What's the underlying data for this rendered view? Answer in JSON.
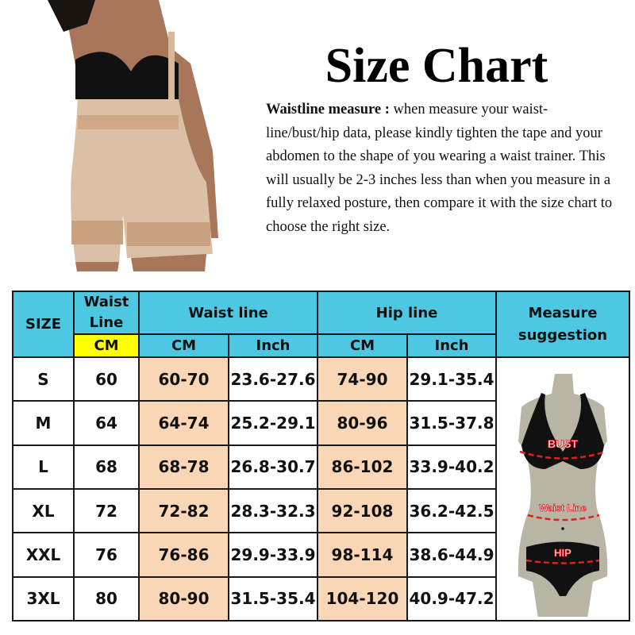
{
  "title": "Size Chart",
  "description": {
    "lead": "Waistline measure :",
    "body": " when measure your waist-line/bust/hip data, please kindly tighten the tape and your abdomen to the shape of you wearing a waist trainer. This will usually be 2-3 inches less than when you measure in a fully relaxed posture, then compare it with the size chart to choose the right size."
  },
  "table": {
    "headers": {
      "size": "SIZE",
      "waist_line_1": "Waist",
      "waist_line_2": "Line",
      "waist_line_group": "Waist line",
      "hip_line_group": "Hip line",
      "measure": "Measure suggestion",
      "cm": "CM",
      "inch": "Inch"
    },
    "rows": [
      {
        "size": "S",
        "waist": "60",
        "waist_cm": "60-70",
        "waist_inch": "23.6-27.6",
        "hip_cm": "74-90",
        "hip_inch": "29.1-35.4"
      },
      {
        "size": "M",
        "waist": "64",
        "waist_cm": "64-74",
        "waist_inch": "25.2-29.1",
        "hip_cm": "80-96",
        "hip_inch": "31.5-37.8"
      },
      {
        "size": "L",
        "waist": "68",
        "waist_cm": "68-78",
        "waist_inch": "26.8-30.7",
        "hip_cm": "86-102",
        "hip_inch": "33.9-40.2"
      },
      {
        "size": "XL",
        "waist": "72",
        "waist_cm": "72-82",
        "waist_inch": "28.3-32.3",
        "hip_cm": "92-108",
        "hip_inch": "36.2-42.5"
      },
      {
        "size": "XXL",
        "waist": "76",
        "waist_cm": "76-86",
        "waist_inch": "29.9-33.9",
        "hip_cm": "98-114",
        "hip_inch": "38.6-44.9"
      },
      {
        "size": "3XL",
        "waist": "80",
        "waist_cm": "80-90",
        "waist_inch": "31.5-35.4",
        "hip_cm": "104-120",
        "hip_inch": "40.9-47.2"
      }
    ]
  },
  "figure": {
    "bust": "BUST",
    "waist": "Waist Line",
    "hip": "HIP"
  },
  "colors": {
    "header": "#4ec8e2",
    "highlight": "#ffff00",
    "peach": "#f9d6b6",
    "mannequin": "#b8b5a5",
    "dash": "#e02020"
  }
}
